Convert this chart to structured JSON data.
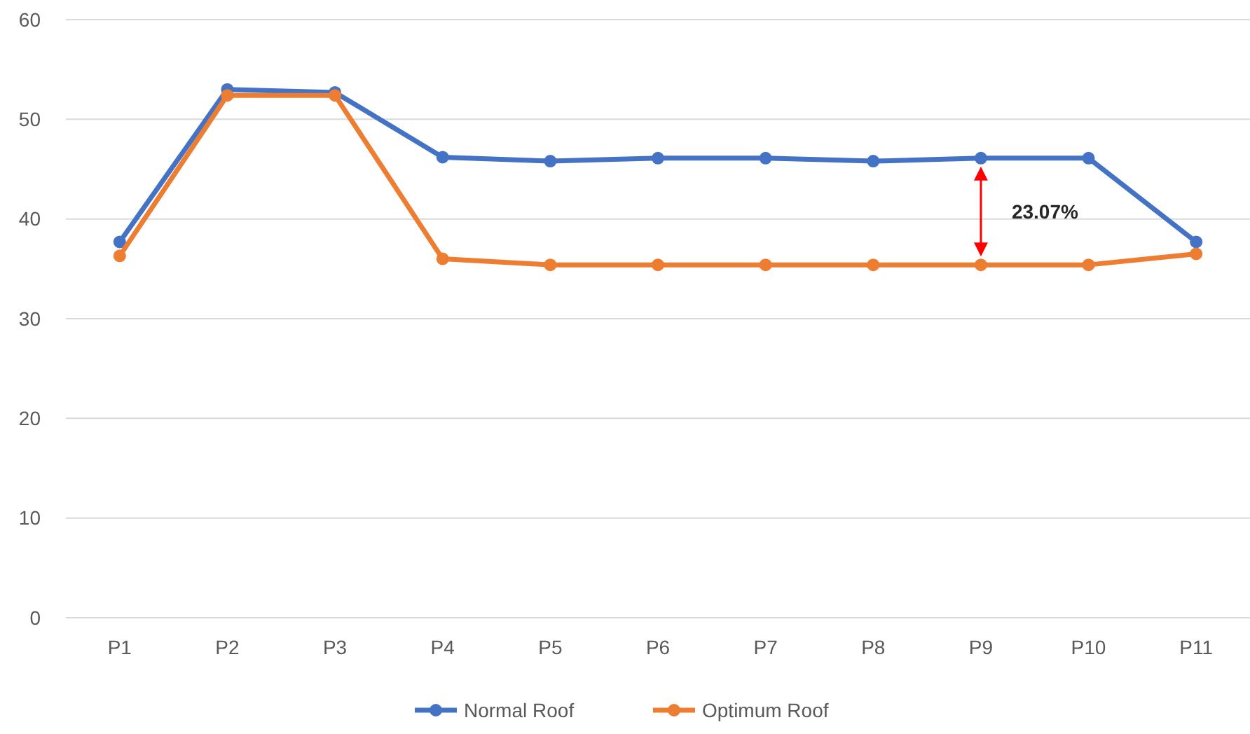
{
  "chart_data": {
    "type": "line",
    "categories": [
      "P1",
      "P2",
      "P3",
      "P4",
      "P5",
      "P6",
      "P7",
      "P8",
      "P9",
      "P10",
      "P11"
    ],
    "series": [
      {
        "name": "Normal Roof",
        "color": "#4472c4",
        "values": [
          37.7,
          53.0,
          52.7,
          46.2,
          45.8,
          46.1,
          46.1,
          45.8,
          46.1,
          46.1,
          37.7
        ]
      },
      {
        "name": "Optimum Roof",
        "color": "#ed7d31",
        "values": [
          36.3,
          52.4,
          52.4,
          36.0,
          35.4,
          35.4,
          35.4,
          35.4,
          35.4,
          35.4,
          36.5
        ]
      }
    ],
    "ylim": [
      0,
      60
    ],
    "yticks": [
      0,
      10,
      20,
      30,
      40,
      50,
      60
    ],
    "grid": "y",
    "legend": "bottom",
    "marker": "circle",
    "line_style": "solid",
    "annotations": [
      "23.07%"
    ]
  }
}
